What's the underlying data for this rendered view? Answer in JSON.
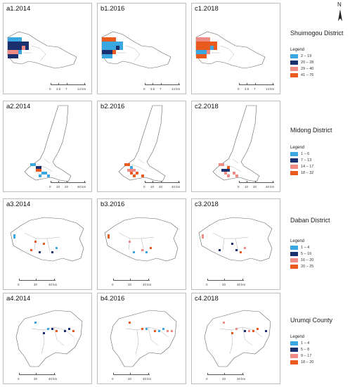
{
  "north_label": "N",
  "colors": {
    "c1": "#3aa7e0",
    "c2": "#1a2f6e",
    "c3": "#f08a84",
    "c4": "#ea5a1e",
    "outline": "#666666"
  },
  "panels": {
    "a1": "a1.2014",
    "b1": "b1.2016",
    "c1": "c1.2018",
    "a2": "a2.2014",
    "b2": "b2.2016",
    "c2": "c2.2018",
    "a3": "a3.2014",
    "b3": "b3.2016",
    "c3": "c3.2018",
    "a4": "a4.2014",
    "b4": "b4.2016",
    "c4": "c4.2018"
  },
  "scales": {
    "row1": [
      "0",
      "3.5",
      "7",
      "14 km"
    ],
    "row2": [
      "0",
      "10",
      "20",
      "40 km"
    ],
    "row3": [
      "0",
      "20",
      "40 km"
    ],
    "row4": [
      "0",
      "20",
      "40 km"
    ]
  },
  "districts": [
    {
      "name": "Shuimogou District",
      "legend_title": "Legend",
      "ranges": [
        "2 – 19",
        "20 – 28",
        "29 – 40",
        "41 – 76"
      ]
    },
    {
      "name": "Midong District",
      "legend_title": "Legend",
      "ranges": [
        "1 – 6",
        "7 – 13",
        "14 – 17",
        "18 – 32"
      ]
    },
    {
      "name": "Daban District",
      "legend_title": "Legend",
      "ranges": [
        "1 – 4",
        "5 – 16",
        "16 – 20",
        "20 – 25"
      ]
    },
    {
      "name": "Urumqi County",
      "legend_title": "Legend",
      "ranges": [
        "1 – 4",
        "5 – 8",
        "9 – 17",
        "18 – 20"
      ]
    }
  ]
}
